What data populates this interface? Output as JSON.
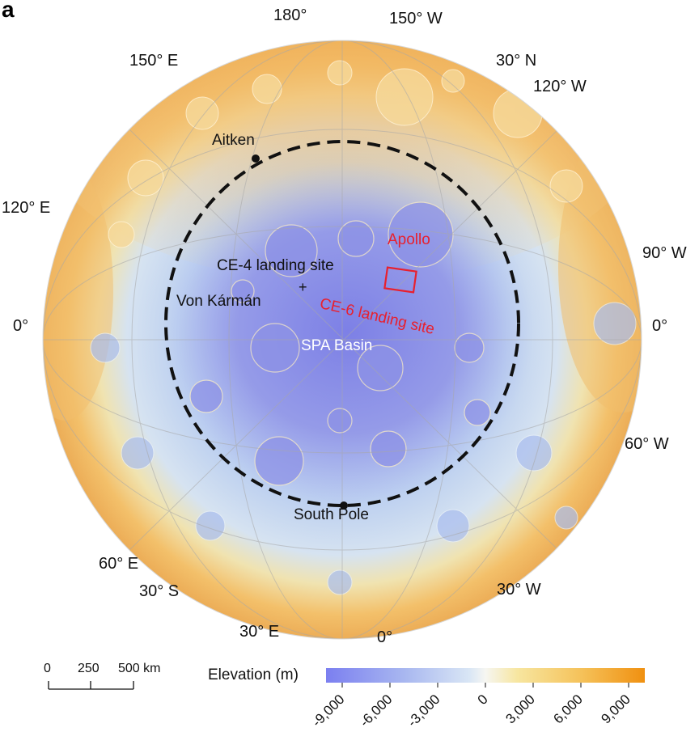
{
  "panel_label": "a",
  "map": {
    "graticule_labels": {
      "lon_180": "180°",
      "lon_150w": "150° W",
      "lon_150e": "150° E",
      "lat_30n": "30° N",
      "lon_120w": "120° W",
      "lon_120e": "120° E",
      "lon_90w": "90° W",
      "zero_left": "0°",
      "zero_right": "0°",
      "lon_60w": "60° W",
      "lon_60e": "60° E",
      "lat_30s": "30° S",
      "lon_30w": "30° W",
      "lon_30e": "30° E",
      "zero_bottom": "0°"
    },
    "features": {
      "aitken": "Aitken",
      "apollo": "Apollo",
      "ce4_site": "CE-4 landing site",
      "ce4_marker": "+",
      "von_karman": "Von Kármán",
      "ce6_site": "CE-6 landing site",
      "spa_basin": "SPA Basin",
      "south_pole": "South Pole"
    }
  },
  "scale_bar": {
    "labels": [
      "0",
      "250",
      "500 km"
    ]
  },
  "legend": {
    "title": "Elevation (m)",
    "ticks": [
      "-9,000",
      "-6,000",
      "-3,000",
      "0",
      "3,000",
      "6,000",
      "9,000"
    ],
    "colors": {
      "low": "#7b7ff0",
      "mid_low": "#b8cdf0",
      "zero": "#f4f4f4",
      "mid_high": "#f7d878",
      "high": "#f09010"
    }
  }
}
